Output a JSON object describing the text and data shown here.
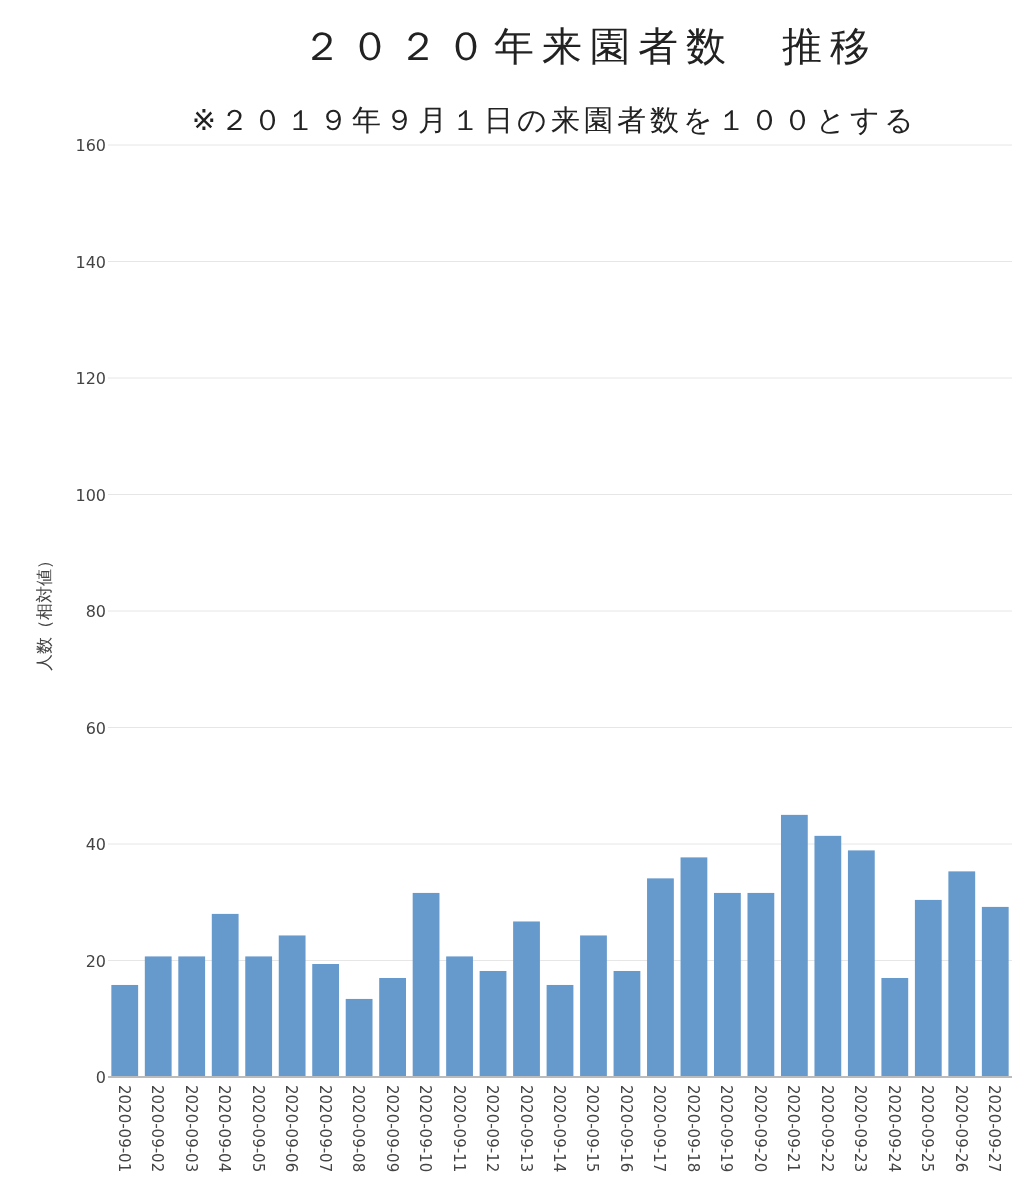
{
  "chart_data": {
    "type": "bar",
    "title": "２０２０年来園者数　推移",
    "subtitle": "※２０１９年９月１日の来園者数を１００とする",
    "ylabel": "人数（相対値）",
    "categories": [
      "2020-09-01",
      "2020-09-02",
      "2020-09-03",
      "2020-09-04",
      "2020-09-05",
      "2020-09-06",
      "2020-09-07",
      "2020-09-08",
      "2020-09-09",
      "2020-09-10",
      "2020-09-11",
      "2020-09-12",
      "2020-09-13",
      "2020-09-14",
      "2020-09-15",
      "2020-09-16",
      "2020-09-17",
      "2020-09-18",
      "2020-09-19",
      "2020-09-20",
      "2020-09-21",
      "2020-09-22",
      "2020-09-23",
      "2020-09-24",
      "2020-09-25",
      "2020-09-26",
      "2020-09-27"
    ],
    "values": [
      15.8,
      20.7,
      20.7,
      28.0,
      20.7,
      24.3,
      19.4,
      13.4,
      17.0,
      31.6,
      20.7,
      18.2,
      26.7,
      15.8,
      24.3,
      18.2,
      34.1,
      37.7,
      31.6,
      31.6,
      45.0,
      41.4,
      38.9,
      17.0,
      30.4,
      35.3,
      29.2
    ],
    "color": "#6699cc",
    "ylim": [
      0,
      160
    ],
    "yticks": [
      0,
      20,
      40,
      60,
      80,
      100,
      120,
      140,
      160
    ],
    "grid": "y"
  }
}
